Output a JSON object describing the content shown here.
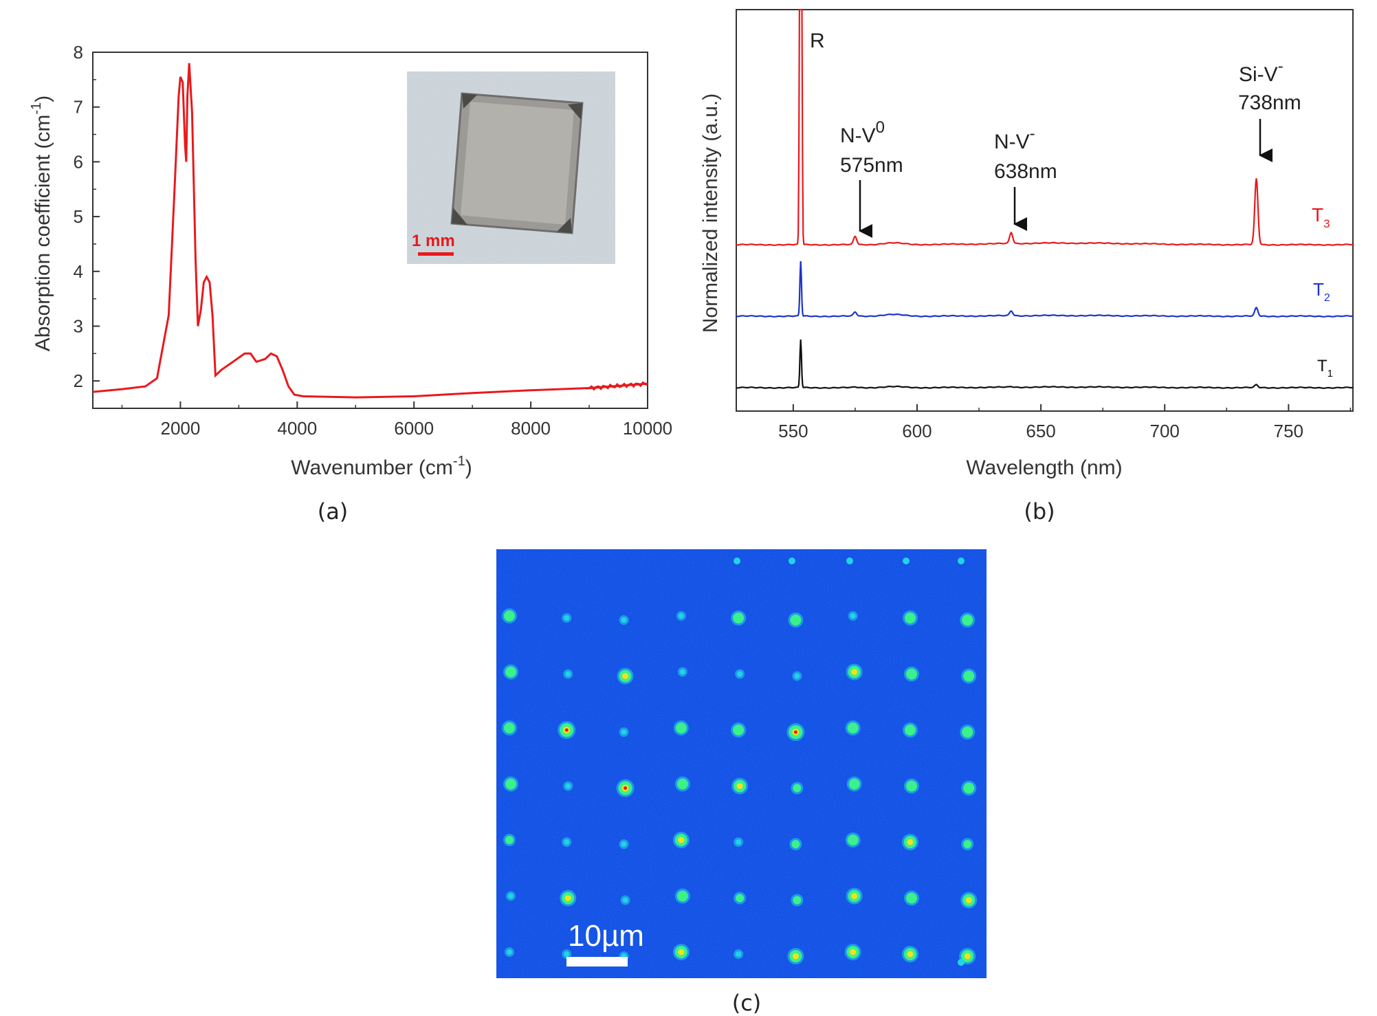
{
  "chart_data": [
    {
      "panel_label": "(a)",
      "type": "line",
      "xlabel": "Wavenumber (cm",
      "xlabel_exponent": "-1",
      "xlabel_suffix": ")",
      "ylabel": "Absorption coefficient (cm",
      "ylabel_exponent": "-1",
      "ylabel_suffix": ")",
      "xlim": [
        500,
        10000
      ],
      "ylim": [
        1.5,
        8
      ],
      "xticks": [
        "2000",
        "4000",
        "6000",
        "8000",
        "10000"
      ],
      "yticks": [
        "2",
        "3",
        "4",
        "5",
        "6",
        "7",
        "8"
      ],
      "series": [
        {
          "color": "#e8191c",
          "x": [
            500,
            1000,
            1400,
            1600,
            1800,
            1900,
            1970,
            2000,
            2040,
            2080,
            2100,
            2120,
            2150,
            2200,
            2260,
            2300,
            2350,
            2400,
            2450,
            2500,
            2550,
            2600,
            2700,
            2900,
            3100,
            3200,
            3300,
            3450,
            3550,
            3650,
            3750,
            3850,
            3950,
            4100,
            5000,
            6000,
            7000,
            8000,
            9000,
            10000
          ],
          "y": [
            1.8,
            1.85,
            1.9,
            2.05,
            3.2,
            5.5,
            7.2,
            7.55,
            7.45,
            6.3,
            6.0,
            7.2,
            7.8,
            6.9,
            4.2,
            3.0,
            3.3,
            3.8,
            3.9,
            3.8,
            3.2,
            2.1,
            2.2,
            2.35,
            2.5,
            2.5,
            2.35,
            2.4,
            2.5,
            2.45,
            2.2,
            1.9,
            1.75,
            1.72,
            1.7,
            1.72,
            1.78,
            1.83,
            1.87,
            1.95
          ]
        }
      ],
      "inset": {
        "scale_bar": "1 mm",
        "scale_bar_color": "#e8191c"
      }
    },
    {
      "panel_label": "(b)",
      "type": "line",
      "xlabel": "Wavelength (nm)",
      "ylabel": "Normalized intensity (a.u.)",
      "xlim": [
        527,
        776
      ],
      "xticks": [
        "550",
        "600",
        "650",
        "700",
        "750"
      ],
      "series": [
        {
          "name": "T",
          "subscript": "3",
          "color": "#e8191c",
          "offset": 2,
          "peaks": [
            [
              553,
              100
            ],
            [
              575,
              0.6
            ],
            [
              638,
              0.8
            ],
            [
              737,
              4.8
            ]
          ]
        },
        {
          "name": "T",
          "subscript": "2",
          "color": "#1b34cc",
          "offset": 1,
          "peaks": [
            [
              553,
              4.0
            ],
            [
              575,
              0.3
            ],
            [
              638,
              0.35
            ],
            [
              737,
              0.6
            ]
          ]
        },
        {
          "name": "T",
          "subscript": "1",
          "color": "#111111",
          "offset": 0,
          "peaks": [
            [
              553,
              3.5
            ],
            [
              575,
              0.05
            ],
            [
              638,
              0.05
            ],
            [
              737,
              0.2
            ]
          ]
        }
      ],
      "annotations": [
        {
          "text": "R",
          "superscript": "",
          "wavelength": ""
        },
        {
          "text": "N-V",
          "superscript": "0",
          "wavelength": "575nm"
        },
        {
          "text": "N-V",
          "superscript": "-",
          "wavelength": "638nm"
        },
        {
          "text": "Si-V",
          "superscript": "-",
          "wavelength": "738nm"
        }
      ]
    },
    {
      "panel_label": "(c)",
      "type": "heatmap",
      "scale_bar": "10µm",
      "background_color": "#0a3de0",
      "spot_colors": [
        "#22d3e6",
        "#3cf08a",
        "#f2e21c",
        "#e8191c"
      ],
      "grid": {
        "rows": 7,
        "cols": 9
      },
      "spot_intensity": [
        [
          2,
          0,
          0,
          0,
          2,
          2,
          0,
          2,
          2
        ],
        [
          2,
          0,
          3,
          0,
          0,
          0,
          3,
          2,
          2
        ],
        [
          2,
          4,
          0,
          2,
          2,
          4,
          2,
          2,
          2
        ],
        [
          2,
          0,
          4,
          2,
          3,
          1,
          2,
          2,
          2
        ],
        [
          1,
          0,
          0,
          3,
          0,
          1,
          2,
          3,
          1
        ],
        [
          0,
          3,
          0,
          2,
          1,
          1,
          3,
          2,
          3
        ],
        [
          0,
          0,
          0,
          3,
          0,
          3,
          3,
          3,
          3
        ]
      ]
    }
  ]
}
